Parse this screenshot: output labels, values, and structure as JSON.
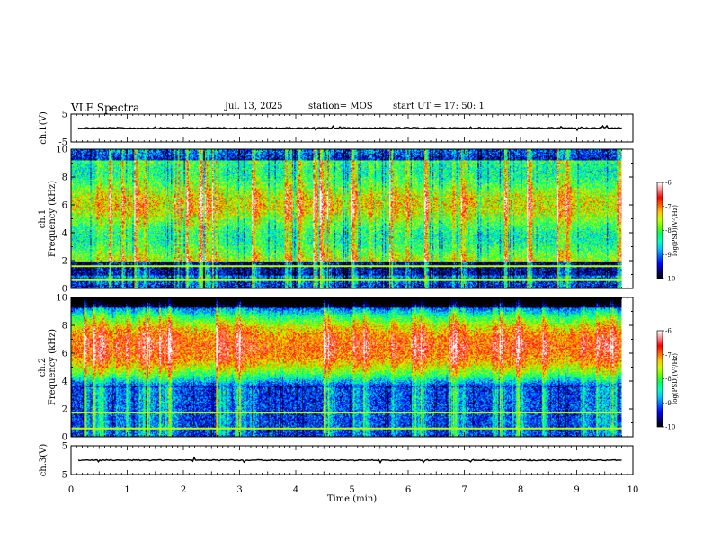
{
  "header": {
    "title": "VLF Spectra",
    "date": "Jul. 13, 2025",
    "station": "station= MOS",
    "start_ut": "start UT =  17: 50: 1"
  },
  "chart_data": {
    "type": "heatmap",
    "title": "VLF Spectra",
    "xlabel": "Time (min)",
    "xlim": [
      0,
      10
    ],
    "x_ticks": [
      "0",
      "1",
      "2",
      "3",
      "4",
      "5",
      "6",
      "7",
      "8",
      "9",
      "10"
    ],
    "panels": [
      {
        "name": "ch1-waveform",
        "ylabel": "ch.1(V)",
        "ylim": [
          -5,
          5
        ],
        "y_ticks": [
          "5",
          "-5"
        ],
        "signal_level": 0
      },
      {
        "name": "ch1-spectrogram",
        "ylabel": "ch.1 Frequency (kHz)",
        "ylabel_lines": [
          "ch.1",
          "Frequency (kHz)"
        ],
        "ylim": [
          0,
          10
        ],
        "y_ticks": [
          "0",
          "2",
          "4",
          "6",
          "8",
          "10"
        ],
        "data_end_min": 9.8,
        "dominant_band_khz": [
          2,
          10
        ],
        "persistent_lines_khz": [
          0.6,
          1.6
        ],
        "colorbar": {
          "label": "log(PSD)(V²/Hz)",
          "min": -10,
          "max": -6,
          "ticks": [
            "-6",
            "-7",
            "-8",
            "-9",
            "-10"
          ]
        }
      },
      {
        "name": "ch2-spectrogram",
        "ylabel": "ch.2 Frequency (kHz)",
        "ylabel_lines": [
          "ch.2",
          "Frequency (kHz)"
        ],
        "ylim": [
          0,
          10
        ],
        "y_ticks": [
          "0",
          "2",
          "4",
          "6",
          "8",
          "10"
        ],
        "data_end_min": 9.8,
        "dominant_band_khz": [
          5,
          8
        ],
        "persistent_lines_khz": [
          0.6,
          1.7
        ],
        "colorbar": {
          "label": "log(PSD)(V²/Hz)",
          "min": -10,
          "max": -6,
          "ticks": [
            "-6",
            "-7",
            "-8",
            "-9",
            "-10"
          ]
        }
      },
      {
        "name": "ch3-waveform",
        "ylabel": "ch.3(V)",
        "ylim": [
          -5,
          5
        ],
        "y_ticks": [
          "5",
          "-5"
        ],
        "signal_level": 0
      }
    ]
  },
  "colors": {
    "frame": "#000000",
    "colormap": [
      "#000000",
      "#00007f",
      "#0000ff",
      "#0064ff",
      "#00c8ff",
      "#00ffc8",
      "#00ff64",
      "#64ff00",
      "#c8ff00",
      "#ffc800",
      "#ff6400",
      "#ff0000",
      "#ff8080",
      "#ffffff"
    ]
  }
}
